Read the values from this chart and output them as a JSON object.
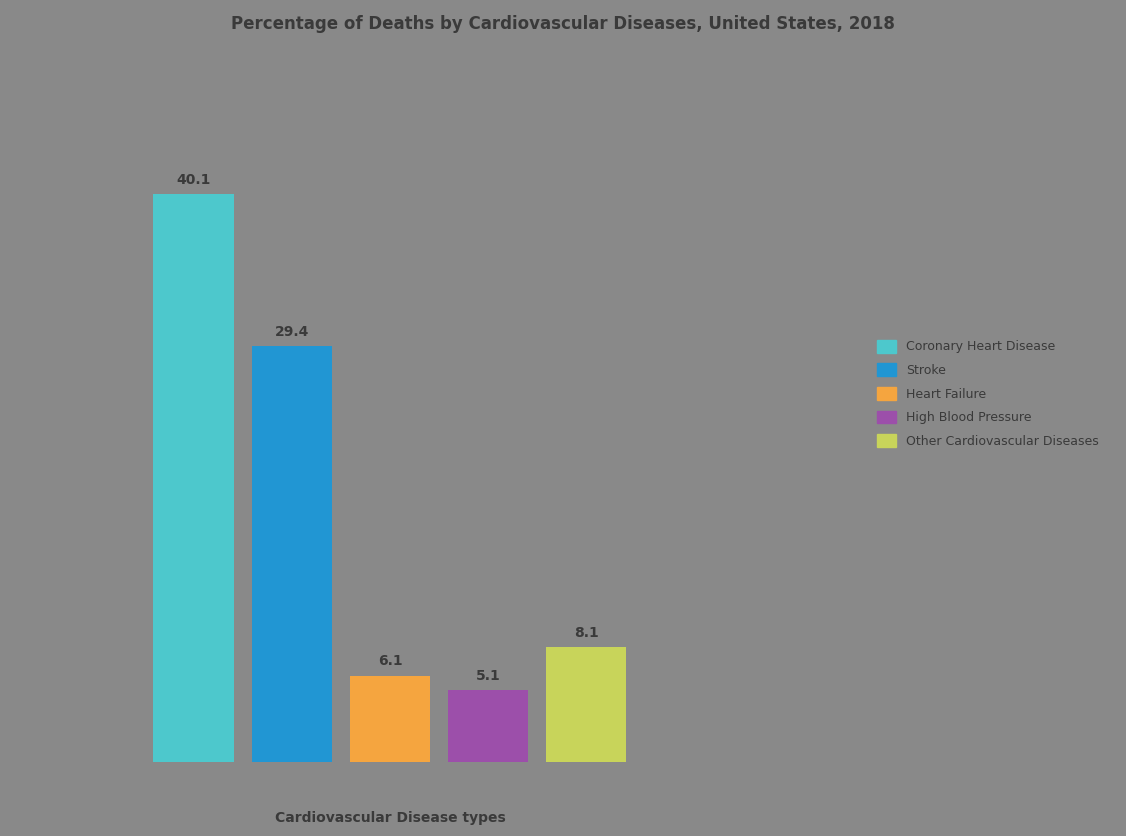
{
  "title": "Percentage of Deaths by Cardiovascular Diseases, United States, 2018",
  "categories": [
    "Coronary\nHeart\nDisease",
    "Stroke",
    "Heart\nFailure",
    "High Blood\nPressure",
    "Other\nCardiovascular\nDiseases"
  ],
  "xlabel": "Cardiovascular Disease types",
  "values": [
    40.1,
    29.4,
    6.1,
    5.1,
    8.1
  ],
  "bar_colors": [
    "#4DC8CC",
    "#2196D3",
    "#F5A53F",
    "#9C4FAA",
    "#C8D45A"
  ],
  "legend_labels": [
    "Coronary Heart Disease",
    "Stroke",
    "Heart Failure",
    "High Blood Pressure",
    "Other Cardiovascular Diseases"
  ],
  "background_color": "#898989",
  "bar_label_color": "#3a3a3a",
  "title_color": "#3a3a3a",
  "title_fontsize": 12,
  "xlabel_fontsize": 10,
  "bar_label_fontsize": 10,
  "bar_width": 0.7,
  "bar_spacing": 0.85,
  "legend_fontsize": 9,
  "ylim": [
    0,
    50
  ]
}
